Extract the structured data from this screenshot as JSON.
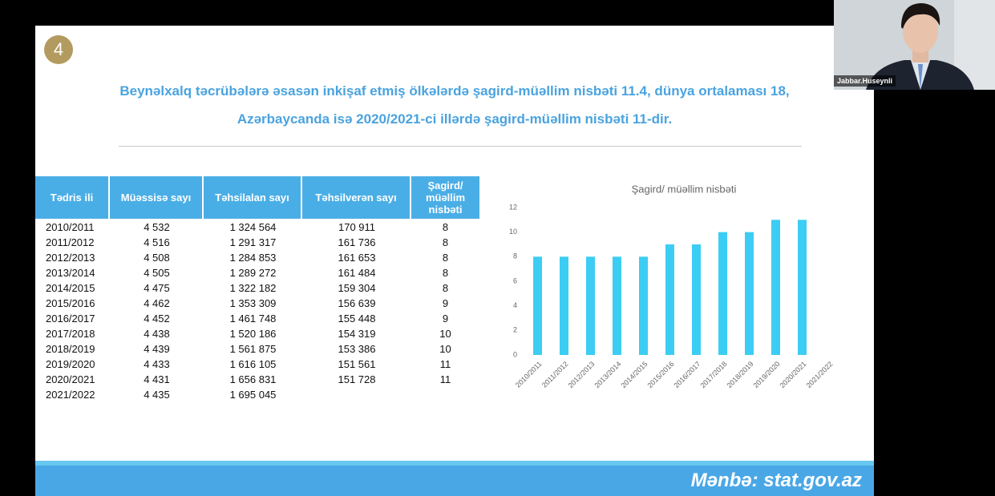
{
  "call": {
    "participant_name": "Jabbar.Huseynli"
  },
  "slide": {
    "number": "4",
    "headline": [
      "Beynəlxalq təcrübələrə əsasən inkişaf etmiş ölkələrdə şagird-müəllim nisbəti 11.4, dünya ortalaması 18,",
      "Azərbaycanda isə 2020/2021-ci illərdə şagird-müəllim nisbəti 11-dir."
    ],
    "table": {
      "header": [
        "Tədris ili",
        "Müəssisə sayı",
        "Təhsilalan sayı",
        "Təhsilverən sayı",
        "Şagird/ müəllim nisbəti"
      ],
      "rows": [
        [
          "2010/2011",
          "4 532",
          "1 324 564",
          "170 911",
          "8"
        ],
        [
          "2011/2012",
          "4 516",
          "1 291 317",
          "161 736",
          "8"
        ],
        [
          "2012/2013",
          "4 508",
          "1 284 853",
          "161 653",
          "8"
        ],
        [
          "2013/2014",
          "4 505",
          "1 289 272",
          "161 484",
          "8"
        ],
        [
          "2014/2015",
          "4 475",
          "1 322 182",
          "159 304",
          "8"
        ],
        [
          "2015/2016",
          "4 462",
          "1 353 309",
          "156 639",
          "9"
        ],
        [
          "2016/2017",
          "4 452",
          "1 461 748",
          "155 448",
          "9"
        ],
        [
          "2017/2018",
          "4 438",
          "1 520 186",
          "154 319",
          "10"
        ],
        [
          "2018/2019",
          "4 439",
          "1 561 875",
          "153 386",
          "10"
        ],
        [
          "2019/2020",
          "4 433",
          "1 616 105",
          "151 561",
          "11"
        ],
        [
          "2020/2021",
          "4 431",
          "1 656 831",
          "151 728",
          "11"
        ],
        [
          "2021/2022",
          "4 435",
          "1 695 045"
        ]
      ]
    },
    "source": "Mənbə: stat.gov.az"
  },
  "chart_data": {
    "type": "bar",
    "title": "Şagird/ müəllim nisbəti",
    "categories": [
      "2010/2011",
      "2011/2012",
      "2012/2013",
      "2013/2014",
      "2014/2015",
      "2015/2016",
      "2016/2017",
      "2017/2018",
      "2018/2019",
      "2019/2020",
      "2020/2021",
      "2021/2022"
    ],
    "values": [
      8,
      8,
      8,
      8,
      8,
      9,
      9,
      10,
      10,
      11,
      11,
      null
    ],
    "color": "#3ccdf4",
    "ylim": [
      0,
      12
    ],
    "yticks": [
      0,
      2,
      4,
      6,
      8,
      10,
      12
    ],
    "grid": false
  }
}
